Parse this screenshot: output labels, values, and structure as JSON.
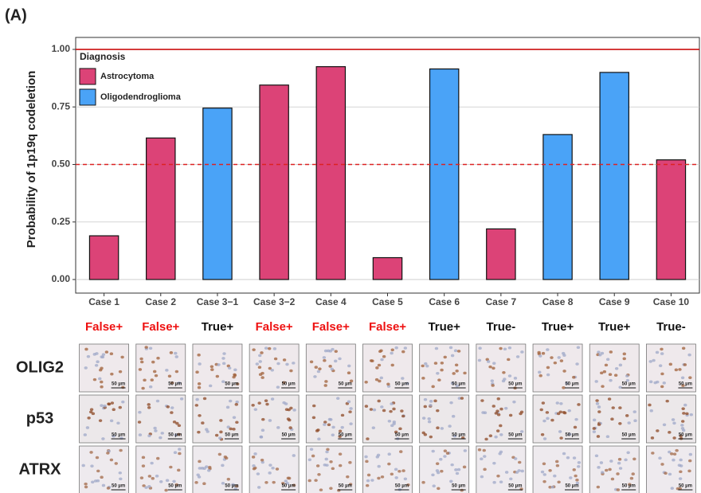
{
  "panel_label": "(A)",
  "chart_data": {
    "type": "bar",
    "ylabel": "Probability of 1p19q codeletion",
    "categories": [
      "Case 1",
      "Case 2",
      "Case 3−1",
      "Case 3−2",
      "Case 4",
      "Case 5",
      "Case 6",
      "Case 7",
      "Case 8",
      "Case 9",
      "Case 10"
    ],
    "series": [
      {
        "name": "Astrocytoma",
        "color": "#dc4377",
        "values": [
          0.19,
          0.615,
          null,
          0.845,
          0.925,
          0.095,
          null,
          0.22,
          null,
          null,
          0.52
        ]
      },
      {
        "name": "Oligodendroglioma",
        "color": "#4aa3f7",
        "values": [
          null,
          null,
          0.745,
          null,
          null,
          null,
          0.915,
          null,
          0.63,
          0.9,
          null
        ]
      }
    ],
    "legend_title": "Diagnosis",
    "legend_position": "top-left",
    "ylim": [
      -0.059,
      1.052
    ],
    "yticks": [
      {
        "value": 0,
        "label": "0.00"
      },
      {
        "value": 0.25,
        "label": "0.25"
      },
      {
        "value": 0.5,
        "label": "0.50"
      },
      {
        "value": 0.75,
        "label": "0.75"
      },
      {
        "value": 1,
        "label": "1.00"
      }
    ],
    "grid": true,
    "reference_lines": [
      {
        "value": 1,
        "color": "#cc1111",
        "style": "solid"
      },
      {
        "value": 0.5,
        "color": "#dd2222",
        "style": "dashed"
      }
    ]
  },
  "predictions": [
    {
      "label": "False+",
      "color": "#ee1111"
    },
    {
      "label": "False+",
      "color": "#ee1111"
    },
    {
      "label": "True+",
      "color": "#111111"
    },
    {
      "label": "False+",
      "color": "#ee1111"
    },
    {
      "label": "False+",
      "color": "#ee1111"
    },
    {
      "label": "False+",
      "color": "#ee1111"
    },
    {
      "label": "True+",
      "color": "#111111"
    },
    {
      "label": "True-",
      "color": "#111111"
    },
    {
      "label": "True+",
      "color": "#111111"
    },
    {
      "label": "True+",
      "color": "#111111"
    },
    {
      "label": "True-",
      "color": "#111111"
    }
  ],
  "markers": [
    "OLIG2",
    "p53",
    "ATRX"
  ],
  "scale_bar_label": "50 µm"
}
